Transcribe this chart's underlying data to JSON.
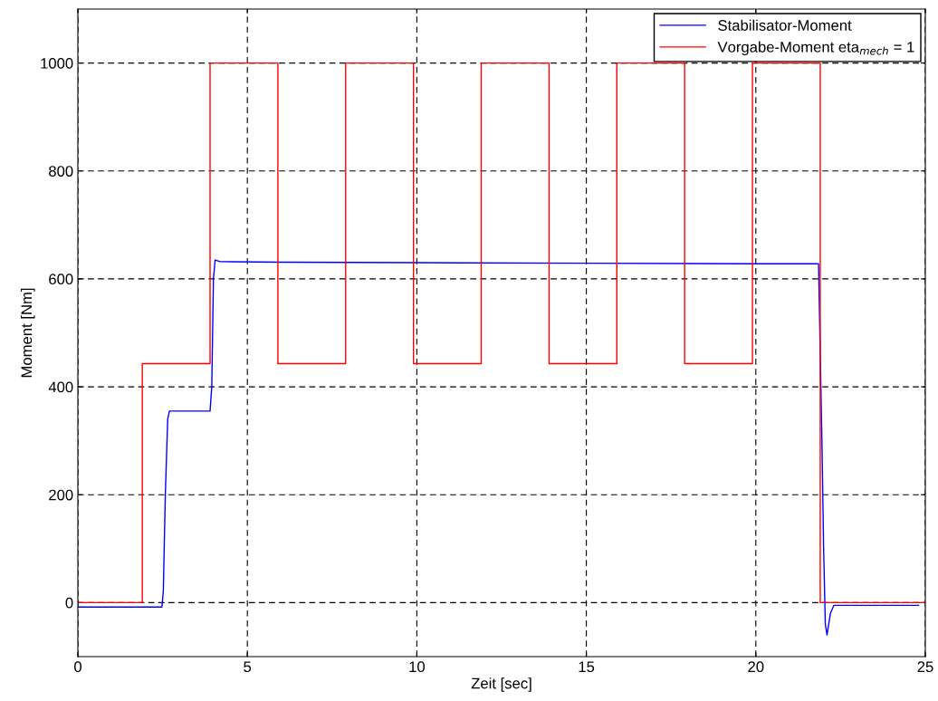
{
  "chart_data": {
    "type": "line",
    "xlabel": "Zeit [sec]",
    "ylabel": "Moment [Nm]",
    "xlim": [
      0,
      25
    ],
    "ylim": [
      -100,
      1100
    ],
    "xticks": [
      0,
      5,
      10,
      15,
      20,
      25
    ],
    "yticks": [
      0,
      200,
      400,
      600,
      800,
      1000
    ],
    "grid": true,
    "legend": "top right",
    "marker": "none",
    "line_style": "solid",
    "series": [
      {
        "name": "Stabilisator-Moment",
        "color": "#0000ff",
        "x": [
          0,
          2.48,
          2.52,
          2.58,
          2.65,
          2.7,
          3.9,
          3.95,
          4.0,
          4.05,
          4.2,
          6,
          10,
          15,
          20,
          21.85,
          21.95,
          22.0,
          22.05,
          22.1,
          22.2,
          22.3,
          24.8
        ],
        "values": [
          -8,
          -8,
          20,
          200,
          340,
          355,
          355,
          400,
          600,
          635,
          632,
          631,
          630,
          629,
          628,
          628,
          300,
          100,
          -40,
          -60,
          -20,
          -5,
          -5
        ]
      },
      {
        "name": "Vorgabe-Moment eta$_{mech}$ = 1",
        "color": "#ff0000",
        "type": "step",
        "x": [
          0,
          1.9,
          3.9,
          5.9,
          7.9,
          9.9,
          11.9,
          13.9,
          15.9,
          17.9,
          19.9,
          21.9,
          25
        ],
        "values": [
          0,
          443,
          1000,
          443,
          1000,
          443,
          1000,
          443,
          1000,
          443,
          1000,
          0,
          0
        ]
      }
    ]
  }
}
